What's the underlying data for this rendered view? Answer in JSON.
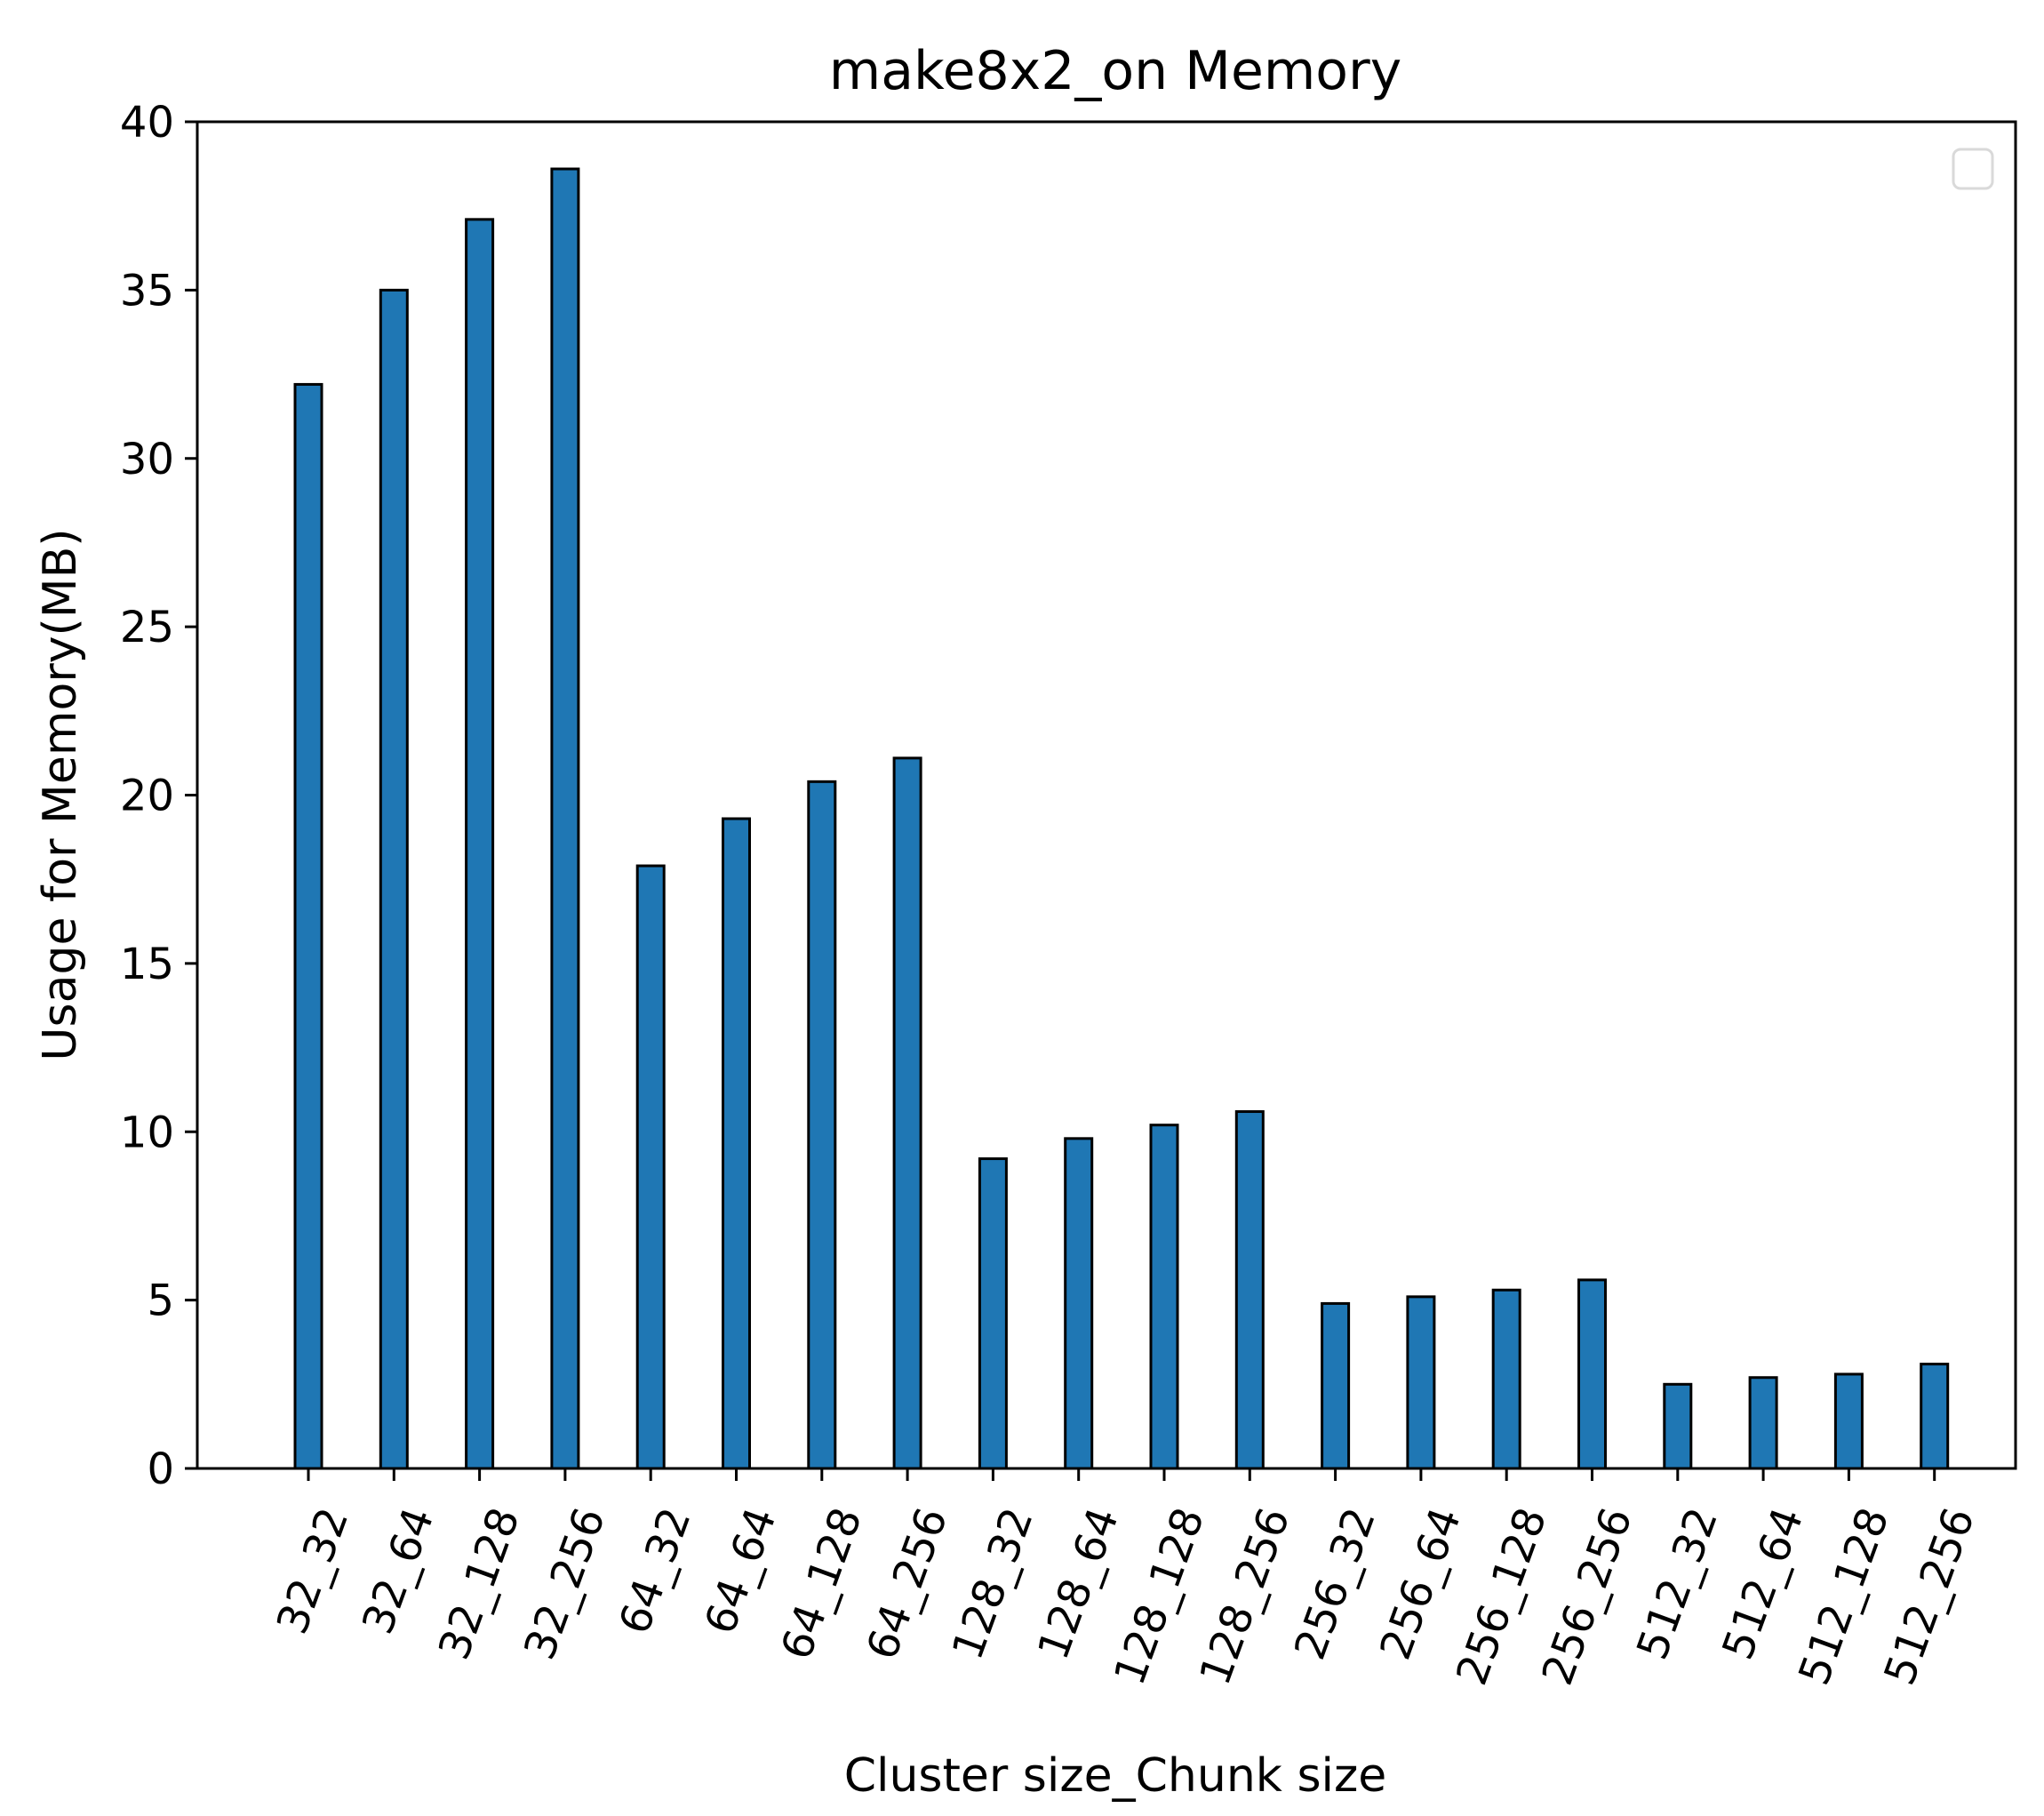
{
  "chart_data": {
    "type": "bar",
    "title": "make8x2_on Memory",
    "xlabel": "Cluster size_Chunk size",
    "ylabel": "Usage for Memory(MB)",
    "ylim": [
      0,
      40
    ],
    "yticks": [
      0,
      5,
      10,
      15,
      20,
      25,
      30,
      35,
      40
    ],
    "categories": [
      "32_32",
      "32_64",
      "32_128",
      "32_256",
      "64_32",
      "64_64",
      "64_128",
      "64_256",
      "128_32",
      "128_64",
      "128_128",
      "128_256",
      "256_32",
      "256_64",
      "256_128",
      "256_256",
      "512_32",
      "512_64",
      "512_128",
      "512_256"
    ],
    "values": [
      32.2,
      35.0,
      37.1,
      38.6,
      17.9,
      19.3,
      20.4,
      21.1,
      9.2,
      9.8,
      10.2,
      10.6,
      4.9,
      5.1,
      5.3,
      5.6,
      2.5,
      2.7,
      2.8,
      3.1
    ],
    "bar_color": "#1f77b4",
    "bar_edge_color": "#000000",
    "grid": false,
    "legend": {
      "placement": "top-right",
      "entries": []
    }
  }
}
